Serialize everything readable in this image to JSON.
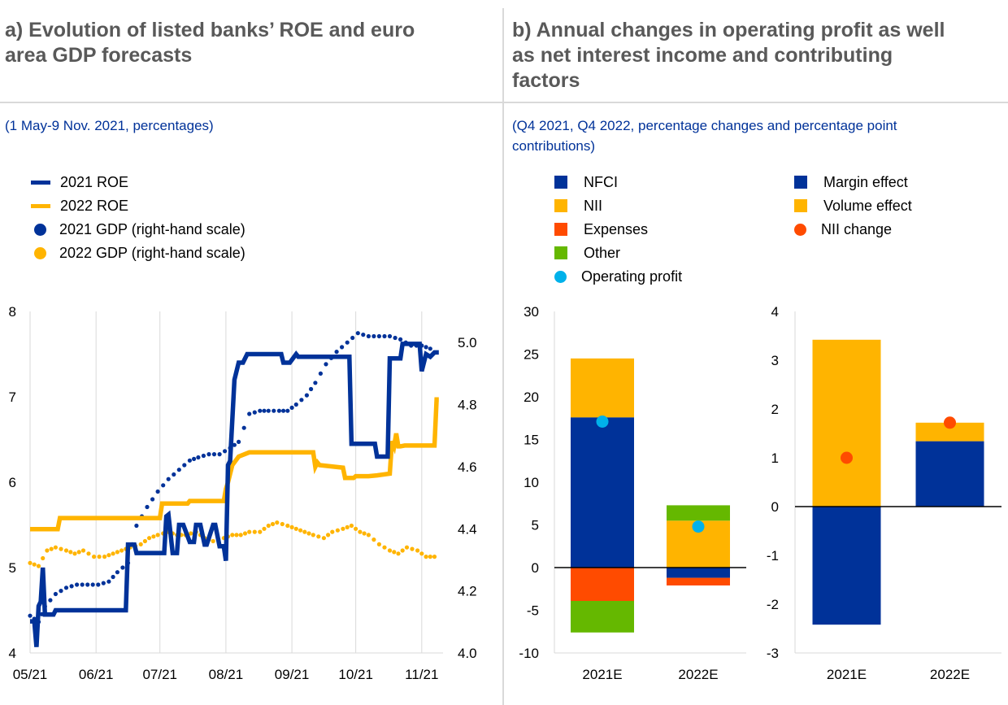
{
  "panel_a": {
    "title_lines": [
      "a) Evolution of listed banks’ ROE and euro",
      "area GDP forecasts"
    ],
    "subtitle": "(1 May-9 Nov. 2021, percentages)"
  },
  "panel_b": {
    "title_lines": [
      "b) Annual changes in operating profit as well",
      "as net interest income and contributing",
      "factors"
    ],
    "subtitle_lines": [
      "(Q4 2021, Q4 2022, percentage changes and percentage point",
      "contributions)"
    ]
  },
  "colors": {
    "dark_blue": "#003299",
    "yellow": "#ffb400",
    "orange": "#ff4b00",
    "green": "#65b800",
    "light_blue": "#00b1ea"
  },
  "chart_data": [
    {
      "type": "line",
      "legend": [
        {
          "label": "2021 ROE",
          "marker": "line",
          "color": "#003299"
        },
        {
          "label": "2022 ROE",
          "marker": "line",
          "color": "#ffb400"
        },
        {
          "label": "2021 GDP (right-hand scale)",
          "marker": "dot",
          "color": "#003299"
        },
        {
          "label": "2022 GDP (right-hand scale)",
          "marker": "dot",
          "color": "#ffb400"
        }
      ],
      "x_ticks": [
        "05/21",
        "06/21",
        "07/21",
        "08/21",
        "09/21",
        "10/21",
        "11/21"
      ],
      "y_left": {
        "min": 4,
        "max": 8,
        "ticks": [
          "4",
          "5",
          "6",
          "7",
          "8"
        ]
      },
      "y_right": {
        "min": 4.0,
        "max": 5.1,
        "ticks": [
          "4.0",
          "4.2",
          "4.4",
          "4.6",
          "4.8",
          "5.0"
        ]
      },
      "grid": "vertical",
      "series": [
        {
          "name": "2021 ROE",
          "axis": "left",
          "style": "line",
          "color": "#003299",
          "x": [
            "2021-05-01",
            "2021-05-03",
            "2021-05-04",
            "2021-05-05",
            "2021-05-06",
            "2021-05-07",
            "2021-05-08",
            "2021-05-12",
            "2021-05-13",
            "2021-06-01",
            "2021-06-15",
            "2021-06-16",
            "2021-06-19",
            "2021-06-20",
            "2021-07-03",
            "2021-07-04",
            "2021-07-05",
            "2021-07-07",
            "2021-07-09",
            "2021-07-10",
            "2021-07-12",
            "2021-07-15",
            "2021-07-17",
            "2021-07-18",
            "2021-07-20",
            "2021-07-22",
            "2021-07-23",
            "2021-07-26",
            "2021-07-27",
            "2021-07-29",
            "2021-07-31",
            "2021-08-01",
            "2021-08-02",
            "2021-08-03",
            "2021-08-05",
            "2021-08-07",
            "2021-08-09",
            "2021-08-11",
            "2021-08-14",
            "2021-08-17",
            "2021-08-27",
            "2021-08-28",
            "2021-08-31",
            "2021-09-03",
            "2021-09-04",
            "2021-09-07",
            "2021-09-10",
            "2021-09-28",
            "2021-09-29",
            "2021-10-10",
            "2021-10-11",
            "2021-10-16",
            "2021-10-17",
            "2021-10-22",
            "2021-10-23",
            "2021-10-31",
            "2021-11-01",
            "2021-11-03",
            "2021-11-05",
            "2021-11-07",
            "2021-11-09"
          ],
          "values": [
            4.37,
            4.37,
            4.07,
            4.55,
            4.6,
            5.0,
            4.45,
            4.45,
            4.5,
            4.5,
            4.5,
            5.27,
            5.27,
            5.17,
            5.17,
            5.6,
            5.62,
            5.17,
            5.17,
            5.5,
            5.5,
            5.3,
            5.3,
            5.5,
            5.5,
            5.27,
            5.27,
            5.5,
            5.5,
            5.25,
            5.25,
            5.08,
            6.2,
            6.25,
            7.2,
            7.4,
            7.4,
            7.5,
            7.5,
            7.5,
            7.5,
            7.4,
            7.4,
            7.5,
            7.47,
            7.47,
            7.47,
            7.47,
            6.45,
            6.45,
            6.3,
            6.3,
            7.45,
            7.45,
            7.62,
            7.62,
            7.3,
            7.5,
            7.47,
            7.52,
            7.52
          ]
        },
        {
          "name": "2022 ROE",
          "axis": "left",
          "style": "line",
          "color": "#ffb400",
          "x": [
            "2021-05-01",
            "2021-05-14",
            "2021-05-15",
            "2021-06-15",
            "2021-06-16",
            "2021-07-01",
            "2021-07-02",
            "2021-07-14",
            "2021-07-15",
            "2021-07-21",
            "2021-07-23",
            "2021-07-31",
            "2021-08-01",
            "2021-08-02",
            "2021-08-04",
            "2021-08-07",
            "2021-08-12",
            "2021-09-11",
            "2021-09-12",
            "2021-09-13",
            "2021-09-14",
            "2021-09-25",
            "2021-09-26",
            "2021-09-30",
            "2021-10-01",
            "2021-10-07",
            "2021-10-11",
            "2021-10-17",
            "2021-10-18",
            "2021-10-19",
            "2021-10-20",
            "2021-10-21",
            "2021-10-22",
            "2021-10-24",
            "2021-11-07",
            "2021-11-08",
            "2021-11-09"
          ],
          "values": [
            5.45,
            5.45,
            5.58,
            5.58,
            5.58,
            5.58,
            5.75,
            5.75,
            5.78,
            5.78,
            5.78,
            5.78,
            5.92,
            6.0,
            6.2,
            6.3,
            6.35,
            6.35,
            6.18,
            6.23,
            6.2,
            6.17,
            6.05,
            6.05,
            6.07,
            6.07,
            6.08,
            6.1,
            6.48,
            6.42,
            6.57,
            6.42,
            6.42,
            6.43,
            6.43,
            6.97,
            6.97
          ]
        },
        {
          "name": "2021 GDP (right-hand scale)",
          "axis": "right",
          "style": "dots",
          "color": "#003299",
          "x": [
            "2021-05-01",
            "2021-05-05",
            "2021-05-08",
            "2021-05-13",
            "2021-05-18",
            "2021-05-23",
            "2021-05-28",
            "2021-06-02",
            "2021-06-07",
            "2021-06-11",
            "2021-06-16",
            "2021-06-20",
            "2021-06-25",
            "2021-06-30",
            "2021-07-05",
            "2021-07-10",
            "2021-07-15",
            "2021-07-19",
            "2021-07-24",
            "2021-07-29",
            "2021-08-03",
            "2021-08-07",
            "2021-08-12",
            "2021-08-17",
            "2021-08-21",
            "2021-08-26",
            "2021-08-30",
            "2021-09-03",
            "2021-09-08",
            "2021-09-12",
            "2021-09-17",
            "2021-09-22",
            "2021-09-27",
            "2021-10-02",
            "2021-10-07",
            "2021-10-12",
            "2021-10-17",
            "2021-10-22",
            "2021-10-27",
            "2021-11-01",
            "2021-11-05"
          ],
          "values": [
            4.12,
            4.1,
            4.15,
            4.19,
            4.21,
            4.22,
            4.22,
            4.22,
            4.23,
            4.26,
            4.29,
            4.41,
            4.47,
            4.52,
            4.56,
            4.59,
            4.62,
            4.63,
            4.64,
            4.64,
            4.66,
            4.68,
            4.77,
            4.78,
            4.78,
            4.78,
            4.78,
            4.8,
            4.83,
            4.87,
            4.93,
            4.97,
            5.0,
            5.03,
            5.02,
            5.02,
            5.02,
            5.01,
            4.99,
            4.99,
            4.98
          ]
        },
        {
          "name": "2022 GDP (right-hand scale)",
          "axis": "right",
          "style": "dots",
          "color": "#ffb400",
          "x": [
            "2021-05-01",
            "2021-05-05",
            "2021-05-09",
            "2021-05-13",
            "2021-05-18",
            "2021-05-22",
            "2021-05-26",
            "2021-05-31",
            "2021-06-05",
            "2021-06-09",
            "2021-06-13",
            "2021-06-17",
            "2021-06-22",
            "2021-06-26",
            "2021-06-30",
            "2021-07-05",
            "2021-07-09",
            "2021-07-13",
            "2021-07-18",
            "2021-07-22",
            "2021-07-26",
            "2021-07-31",
            "2021-08-04",
            "2021-08-08",
            "2021-08-12",
            "2021-08-17",
            "2021-08-21",
            "2021-08-25",
            "2021-08-30",
            "2021-09-03",
            "2021-09-07",
            "2021-09-11",
            "2021-09-16",
            "2021-09-20",
            "2021-09-25",
            "2021-09-29",
            "2021-10-03",
            "2021-10-07",
            "2021-10-12",
            "2021-10-17",
            "2021-10-21",
            "2021-10-25",
            "2021-10-30",
            "2021-11-03",
            "2021-11-07"
          ],
          "values": [
            4.29,
            4.28,
            4.33,
            4.34,
            4.33,
            4.32,
            4.33,
            4.31,
            4.31,
            4.32,
            4.33,
            4.34,
            4.35,
            4.37,
            4.38,
            4.39,
            4.38,
            4.38,
            4.39,
            4.37,
            4.36,
            4.37,
            4.38,
            4.38,
            4.39,
            4.39,
            4.41,
            4.42,
            4.41,
            4.4,
            4.39,
            4.38,
            4.37,
            4.39,
            4.4,
            4.41,
            4.39,
            4.38,
            4.35,
            4.33,
            4.32,
            4.34,
            4.33,
            4.31,
            4.31
          ]
        }
      ]
    },
    {
      "type": "bar",
      "stacked": true,
      "legend": [
        {
          "label": "NFCI",
          "marker": "square",
          "color": "#003299"
        },
        {
          "label": "NII",
          "marker": "square",
          "color": "#ffb400"
        },
        {
          "label": "Expenses",
          "marker": "square",
          "color": "#ff4b00"
        },
        {
          "label": "Other",
          "marker": "square",
          "color": "#65b800"
        },
        {
          "label": "Operating profit",
          "marker": "dot",
          "color": "#00b1ea"
        }
      ],
      "categories": [
        "2021E",
        "2022E"
      ],
      "ylim": [
        -10,
        30
      ],
      "y_ticks": [
        "-10",
        "-5",
        "0",
        "5",
        "10",
        "15",
        "20",
        "25",
        "30"
      ],
      "series": [
        {
          "name": "NFCI",
          "color": "#003299",
          "values": [
            17.6,
            -1.2
          ]
        },
        {
          "name": "NII",
          "color": "#ffb400",
          "values": [
            6.9,
            5.5
          ]
        },
        {
          "name": "Expenses",
          "color": "#ff4b00",
          "values": [
            -3.9,
            -0.9
          ]
        },
        {
          "name": "Other",
          "color": "#65b800",
          "values": [
            -3.7,
            1.8
          ]
        }
      ],
      "markers": [
        {
          "name": "Operating profit",
          "color": "#00b1ea",
          "values": [
            17.1,
            4.8
          ]
        }
      ]
    },
    {
      "type": "bar",
      "stacked": true,
      "legend": [
        {
          "label": "Margin effect",
          "marker": "square",
          "color": "#003299"
        },
        {
          "label": "Volume effect",
          "marker": "square",
          "color": "#ffb400"
        },
        {
          "label": "NII change",
          "marker": "dot",
          "color": "#ff4b00"
        }
      ],
      "categories": [
        "2021E",
        "2022E"
      ],
      "ylim": [
        -3,
        4
      ],
      "y_ticks": [
        "-3",
        "-2",
        "-1",
        "0",
        "1",
        "2",
        "3",
        "4"
      ],
      "series": [
        {
          "name": "Margin effect",
          "color": "#003299",
          "values": [
            -2.42,
            1.34
          ]
        },
        {
          "name": "Volume effect",
          "color": "#ffb400",
          "values": [
            3.42,
            0.38
          ]
        }
      ],
      "markers": [
        {
          "name": "NII change",
          "color": "#ff4b00",
          "values": [
            1.0,
            1.72
          ]
        }
      ]
    }
  ]
}
